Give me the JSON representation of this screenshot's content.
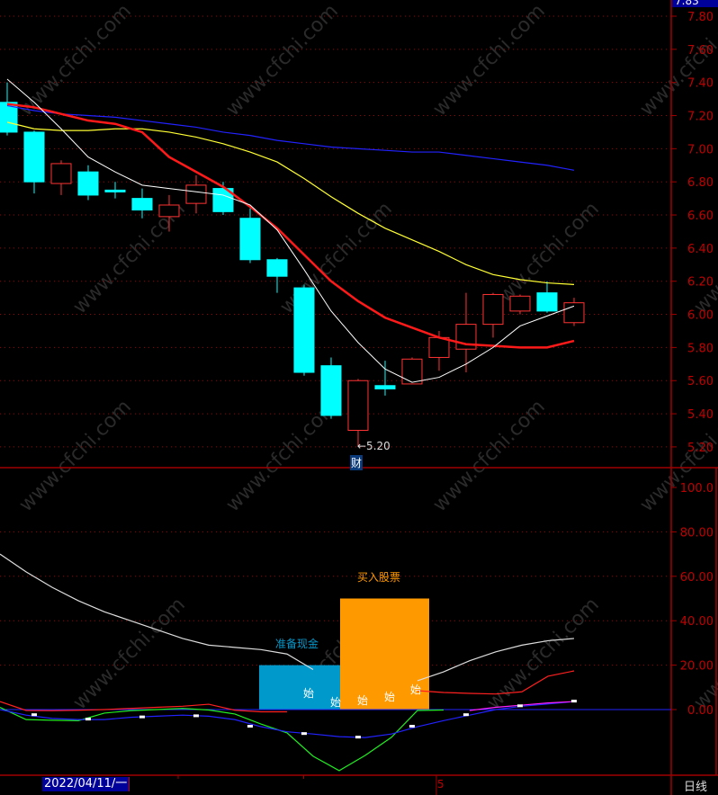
{
  "header": {
    "current_price_badge": "7.83"
  },
  "price_panel": {
    "y_ticks": [
      "7.80",
      "7.60",
      "7.40",
      "7.20",
      "7.00",
      "6.80",
      "6.60",
      "6.40",
      "6.20",
      "6.00",
      "5.80",
      "5.60",
      "5.40",
      "5.20"
    ],
    "low_marker_label": "←5.20",
    "event_marker": "财",
    "colors": {
      "up": "#ff3333",
      "down": "#00ffff",
      "ma_white": "#ffffff",
      "ma_red": "#ff1a1a",
      "ma_yellow": "#ffff33",
      "ma_blue": "#2222ff",
      "grid": "#a00000"
    },
    "candles": [
      {
        "o": 7.28,
        "c": 7.1,
        "h": 7.4,
        "l": 7.08
      },
      {
        "o": 7.1,
        "c": 6.8,
        "h": 7.11,
        "l": 6.73
      },
      {
        "o": 6.79,
        "c": 6.91,
        "h": 6.93,
        "l": 6.72
      },
      {
        "o": 6.86,
        "c": 6.72,
        "h": 6.9,
        "l": 6.69
      },
      {
        "o": 6.75,
        "c": 6.75,
        "h": 6.8,
        "l": 6.7
      },
      {
        "o": 6.7,
        "c": 6.63,
        "h": 6.76,
        "l": 6.58
      },
      {
        "o": 6.59,
        "c": 6.66,
        "h": 6.72,
        "l": 6.5
      },
      {
        "o": 6.67,
        "c": 6.78,
        "h": 6.84,
        "l": 6.61
      },
      {
        "o": 6.76,
        "c": 6.62,
        "h": 6.8,
        "l": 6.6
      },
      {
        "o": 6.58,
        "c": 6.33,
        "h": 6.64,
        "l": 6.31
      },
      {
        "o": 6.33,
        "c": 6.23,
        "h": 6.34,
        "l": 6.13
      },
      {
        "o": 6.16,
        "c": 5.65,
        "h": 6.18,
        "l": 5.63
      },
      {
        "o": 5.69,
        "c": 5.39,
        "h": 5.74,
        "l": 5.37
      },
      {
        "o": 5.3,
        "c": 5.6,
        "h": 5.61,
        "l": 5.2
      },
      {
        "o": 5.57,
        "c": 5.55,
        "h": 5.72,
        "l": 5.51
      },
      {
        "o": 5.58,
        "c": 5.73,
        "h": 5.74,
        "l": 5.58
      },
      {
        "o": 5.74,
        "c": 5.86,
        "h": 5.9,
        "l": 5.66
      },
      {
        "o": 5.79,
        "c": 5.94,
        "h": 6.13,
        "l": 5.65
      },
      {
        "o": 5.94,
        "c": 6.12,
        "h": 6.13,
        "l": 5.86
      },
      {
        "o": 6.02,
        "c": 6.11,
        "h": 6.12,
        "l": 6.0
      },
      {
        "o": 6.13,
        "c": 6.02,
        "h": 6.2,
        "l": 6.01
      },
      {
        "o": 5.95,
        "c": 6.07,
        "h": 6.1,
        "l": 5.93
      }
    ],
    "ma_white": [
      7.42,
      7.28,
      7.12,
      6.95,
      6.86,
      6.78,
      6.76,
      6.74,
      6.72,
      6.66,
      6.51,
      6.27,
      6.02,
      5.83,
      5.67,
      5.59,
      5.62,
      5.7,
      5.8,
      5.93,
      5.99,
      6.05
    ],
    "ma_red": [
      7.27,
      7.25,
      7.21,
      7.17,
      7.15,
      7.1,
      6.95,
      6.86,
      6.77,
      6.65,
      6.52,
      6.36,
      6.2,
      6.08,
      5.98,
      5.92,
      5.86,
      5.82,
      5.81,
      5.8,
      5.8,
      5.84
    ],
    "ma_yellow": [
      7.16,
      7.12,
      7.11,
      7.11,
      7.12,
      7.12,
      7.1,
      7.07,
      7.03,
      6.98,
      6.92,
      6.82,
      6.71,
      6.61,
      6.52,
      6.45,
      6.38,
      6.3,
      6.24,
      6.21,
      6.19,
      6.18
    ],
    "ma_blue": [
      7.26,
      7.23,
      7.21,
      7.2,
      7.19,
      7.17,
      7.15,
      7.13,
      7.1,
      7.08,
      7.05,
      7.03,
      7.01,
      7.0,
      6.99,
      6.98,
      6.98,
      6.96,
      6.94,
      6.92,
      6.9,
      6.87
    ]
  },
  "indicator_panel": {
    "y_ticks": [
      "100.0",
      "80.00",
      "60.00",
      "40.00",
      "20.00",
      "0.00"
    ],
    "label_prepare_cash": "准备现金",
    "label_buy_stock": "买入股票",
    "start_marks": [
      "始",
      "始",
      "始",
      "始",
      "始"
    ],
    "cash_bar_value": 20,
    "buy_bar_value": 50,
    "colors": {
      "cash": "#0099cc",
      "buy": "#ff9900"
    },
    "white_line": [
      70,
      62,
      55,
      49,
      44,
      40,
      36,
      32,
      29,
      28,
      27,
      25,
      18,
      null,
      null,
      null,
      13,
      17,
      22,
      26,
      29,
      31,
      32
    ],
    "red_line": [
      3.6,
      -0.4,
      -0.5,
      -0.3,
      0,
      0.5,
      1,
      1.5,
      2.4,
      -0.3,
      -1,
      -1,
      null,
      null,
      null,
      null,
      8.5,
      7.7,
      7.3,
      7,
      8,
      15,
      17.4
    ],
    "green_line": [
      1,
      -4.5,
      -4.8,
      -5,
      -1.6,
      -0.5,
      0,
      0.5,
      -0.2,
      -2,
      -6.5,
      -10.5,
      -21,
      -27.5,
      -20.6,
      -12.5,
      -0.4,
      -0.2
    ],
    "blue_line": [
      0,
      -2.5,
      -4,
      -4.5,
      -4.5,
      -3.5,
      -3,
      -2.5,
      -3,
      -4.5,
      -7.7,
      -10,
      -11,
      -12.2,
      -12.6,
      -11,
      -7.7,
      -5,
      -2.5,
      0,
      1.5,
      2.5,
      3.6
    ],
    "magenta_line": [
      null,
      null,
      null,
      null,
      null,
      null,
      null,
      null,
      null,
      null,
      null,
      null,
      null,
      null,
      null,
      null,
      null,
      null,
      -0.4,
      1,
      2,
      3,
      3.6
    ]
  },
  "x_axis": {
    "date_label": "2022/04/11/一",
    "month_tick": "5",
    "period": "日线"
  },
  "watermark": "www.cfchi.com"
}
